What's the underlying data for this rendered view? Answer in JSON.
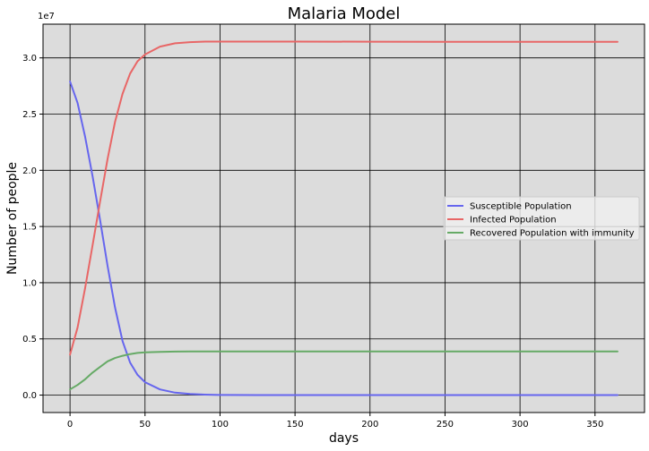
{
  "chart_data": {
    "type": "line",
    "title": "Malaria Model",
    "xlabel": "days",
    "ylabel": "Number of people",
    "y_offset_label": "1e7",
    "xlim": [
      -18,
      383
    ],
    "ylim": [
      -1550000,
      33000000
    ],
    "x_ticks": [
      0,
      50,
      100,
      150,
      200,
      250,
      300,
      350
    ],
    "y_ticks": [
      0,
      5000000,
      10000000,
      15000000,
      20000000,
      25000000,
      30000000
    ],
    "y_tick_labels": [
      "0.0",
      "0.5",
      "1.0",
      "1.5",
      "2.0",
      "2.5",
      "3.0"
    ],
    "grid": true,
    "legend_position": "center-right",
    "colors": {
      "background": "#dcdcdc",
      "grid": "#000000"
    },
    "x": [
      0,
      5,
      10,
      15,
      20,
      25,
      30,
      35,
      40,
      45,
      50,
      60,
      70,
      80,
      90,
      100,
      125,
      150,
      200,
      250,
      300,
      350,
      365
    ],
    "series": [
      {
        "name": "Susceptible Population",
        "color": "#6666ee",
        "values": [
          27900000,
          26000000,
          23000000,
          19500000,
          15600000,
          11500000,
          7800000,
          4800000,
          2900000,
          1800000,
          1150000,
          500000,
          220000,
          100000,
          40000,
          10000,
          0,
          0,
          0,
          0,
          0,
          0,
          0
        ]
      },
      {
        "name": "Infected Population",
        "color": "#e86666",
        "values": [
          3600000,
          6000000,
          9500000,
          13300000,
          17200000,
          21000000,
          24300000,
          26800000,
          28600000,
          29700000,
          30300000,
          31000000,
          31300000,
          31400000,
          31450000,
          31450000,
          31450000,
          31450000,
          31440000,
          31430000,
          31420000,
          31420000,
          31420000
        ]
      },
      {
        "name": "Recovered Population with immunity",
        "color": "#66aa66",
        "values": [
          500000,
          900000,
          1400000,
          2000000,
          2500000,
          3000000,
          3300000,
          3500000,
          3650000,
          3750000,
          3800000,
          3850000,
          3870000,
          3880000,
          3880000,
          3880000,
          3880000,
          3880000,
          3880000,
          3880000,
          3880000,
          3880000,
          3880000
        ]
      }
    ]
  }
}
